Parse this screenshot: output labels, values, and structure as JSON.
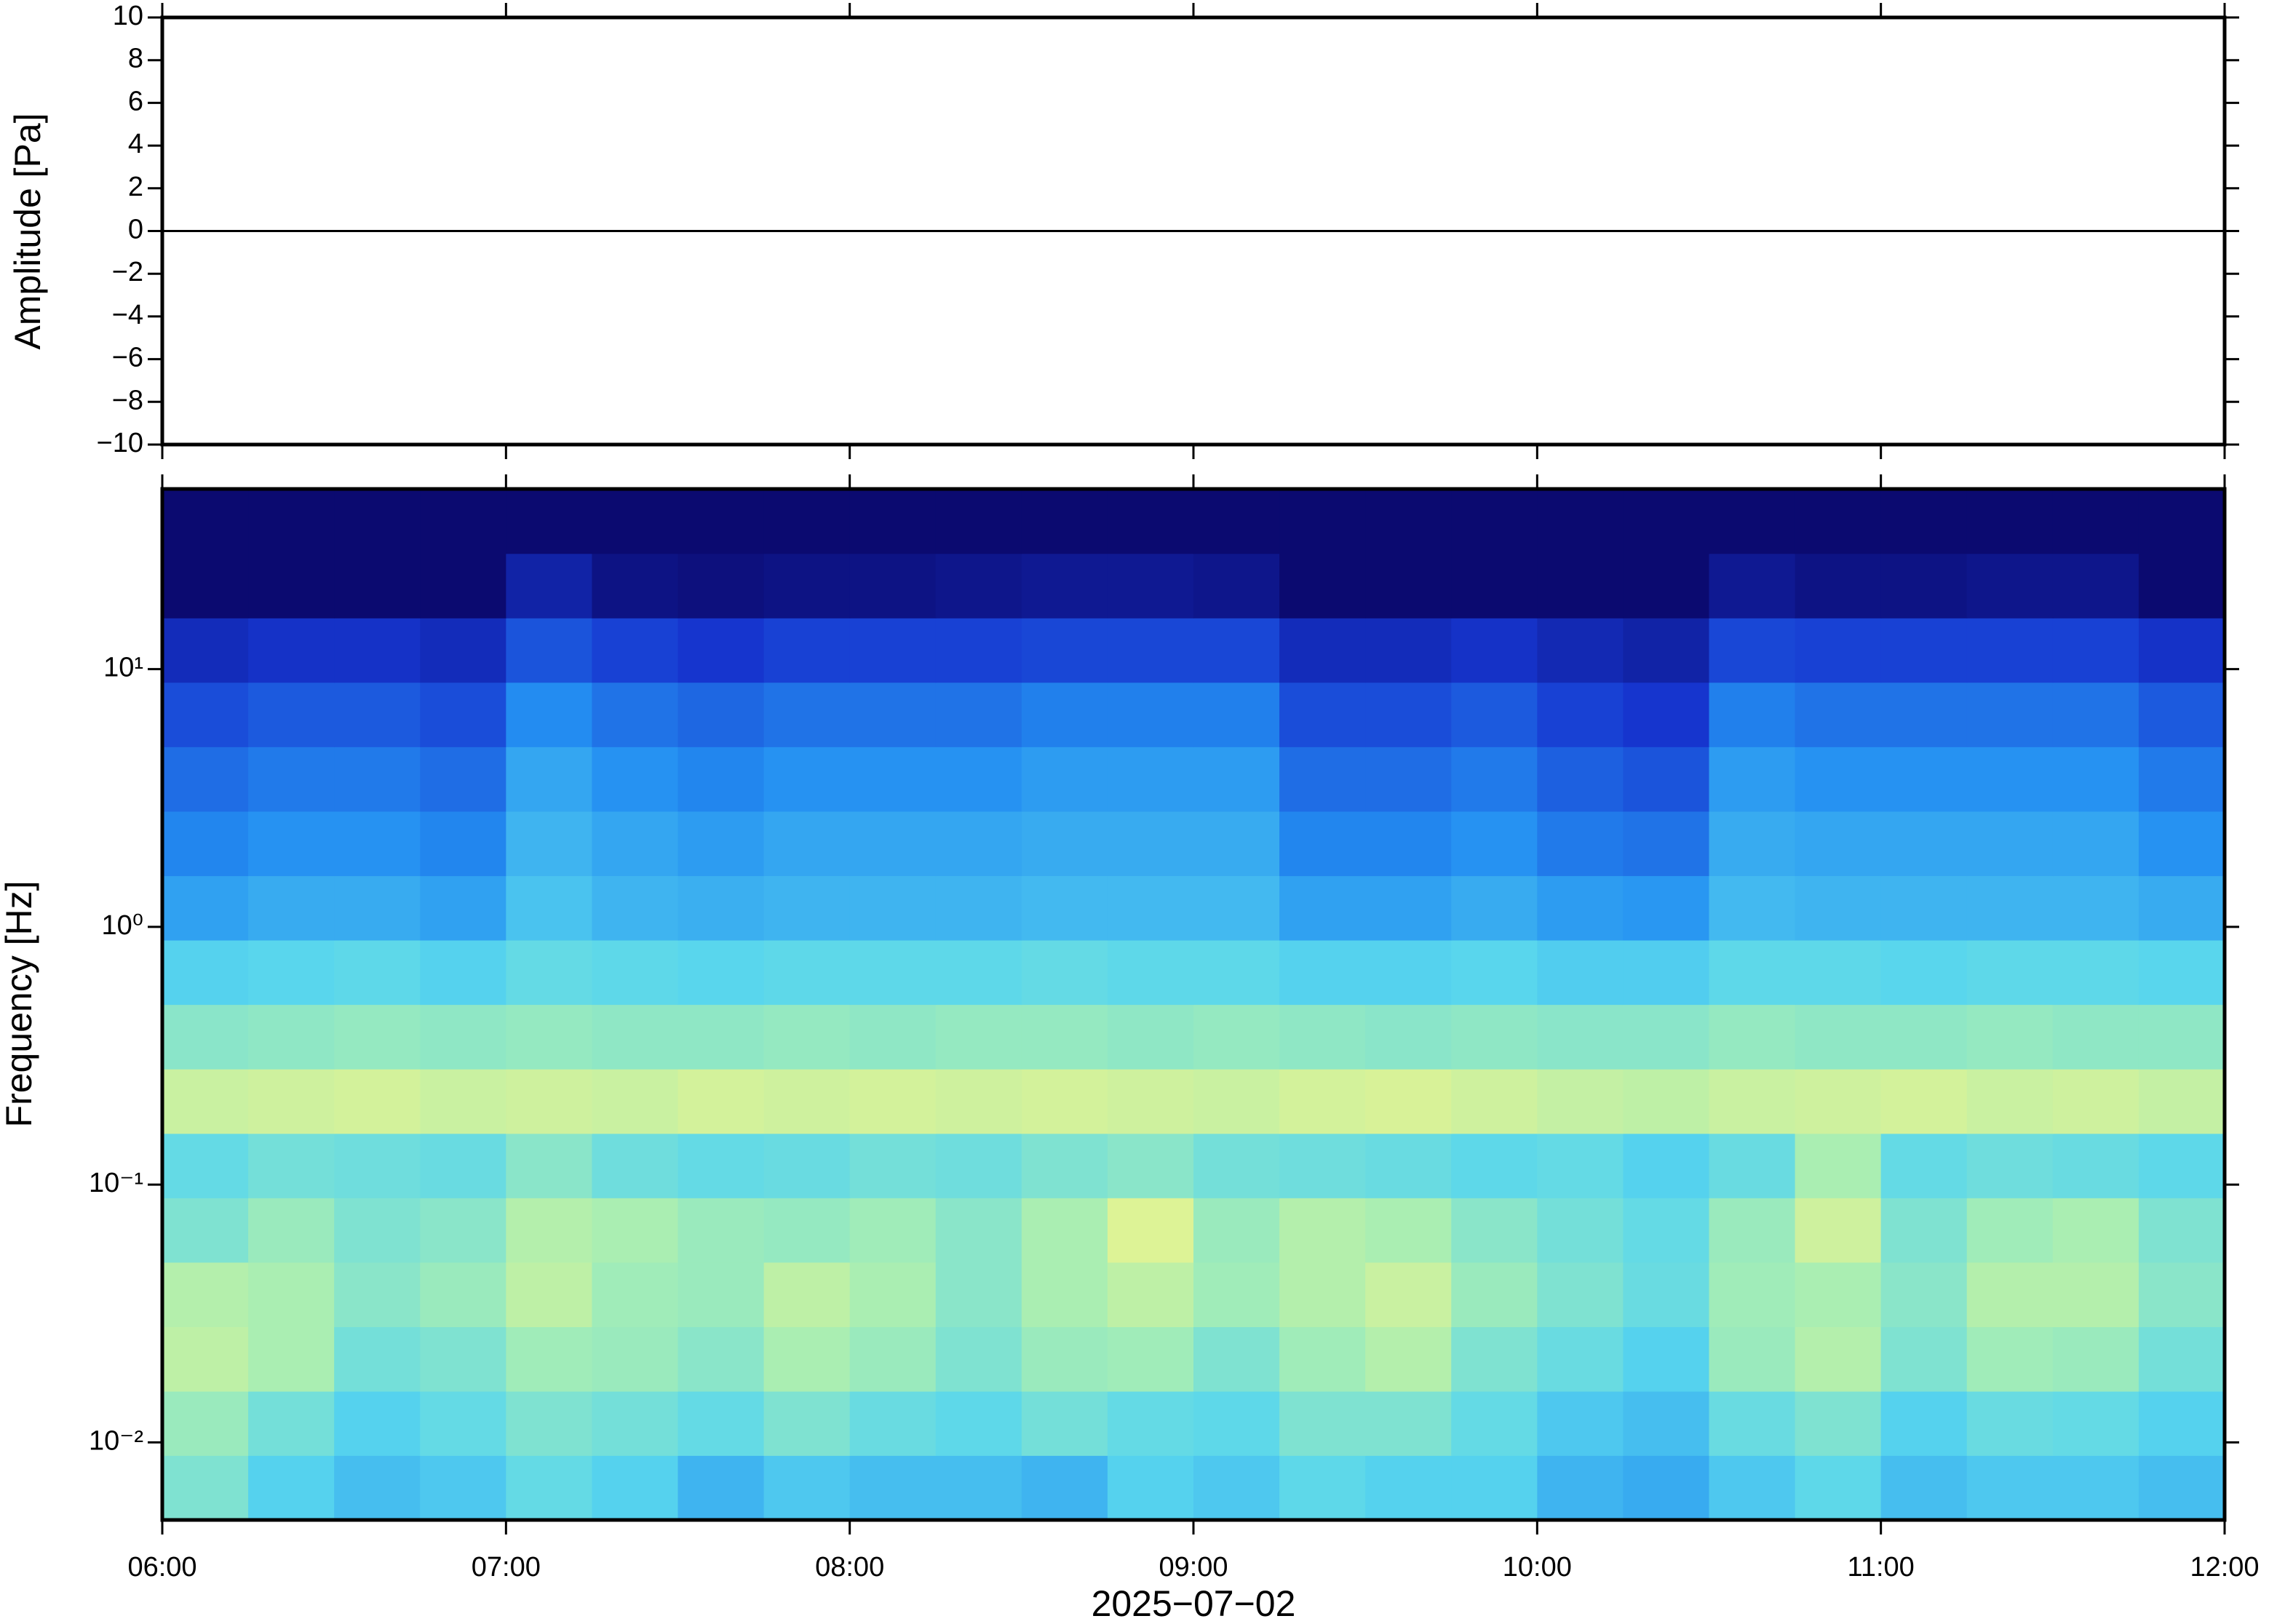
{
  "chart_data": [
    {
      "type": "line",
      "ylabel": "Amplitude [Pa]",
      "x": [
        6,
        12
      ],
      "series": [
        {
          "color": "#000000",
          "values": [
            0,
            0
          ]
        }
      ],
      "xlim": [
        6,
        12
      ],
      "xticks": [
        6,
        7,
        8,
        9,
        10,
        11,
        12
      ],
      "ylim": [
        -10,
        10
      ],
      "yticks": [
        {
          "value": -10,
          "label": "−10"
        },
        {
          "value": -8,
          "label": "−8"
        },
        {
          "value": -6,
          "label": "−6"
        },
        {
          "value": -4,
          "label": "−4"
        },
        {
          "value": -2,
          "label": "−2"
        },
        0,
        2,
        4,
        6,
        8,
        10
      ]
    },
    {
      "type": "heatmap",
      "ylabel": "Frequency [Hz]",
      "xlabel": "2025−07−02",
      "ylog": true,
      "colormap": [
        "#0b0a70",
        "#1636d0",
        "#2490f2",
        "#58d6ee",
        "#a6eeb4",
        "#eef48c",
        "#f6c268",
        "#e8603a"
      ],
      "x": [
        6,
        6.25,
        6.5,
        6.75,
        7,
        7.25,
        7.5,
        7.75,
        8,
        8.25,
        8.5,
        8.75,
        9,
        9.25,
        9.5,
        9.75,
        10,
        10.25,
        10.5,
        10.75,
        11,
        11.25,
        11.5,
        11.75,
        12
      ],
      "y": [
        0.005,
        0.0089,
        0.0158,
        0.0281,
        0.05,
        0.0889,
        0.158,
        0.281,
        0.5,
        0.889,
        1.58,
        2.81,
        5,
        8.89,
        15.8,
        28.1,
        50
      ],
      "values": [
        [
          0.5,
          0.42,
          0.38,
          0.4,
          0.45,
          0.42,
          0.36,
          0.4,
          0.38,
          0.38,
          0.36,
          0.42,
          0.4,
          0.44,
          0.42,
          0.42,
          0.36,
          0.34,
          0.4,
          0.44,
          0.38,
          0.4,
          0.4,
          0.38
        ],
        [
          0.55,
          0.48,
          0.42,
          0.45,
          0.5,
          0.48,
          0.45,
          0.5,
          0.46,
          0.44,
          0.48,
          0.45,
          0.44,
          0.5,
          0.5,
          0.45,
          0.4,
          0.38,
          0.46,
          0.5,
          0.42,
          0.46,
          0.45,
          0.42
        ],
        [
          0.62,
          0.58,
          0.48,
          0.5,
          0.56,
          0.55,
          0.52,
          0.58,
          0.55,
          0.5,
          0.55,
          0.56,
          0.5,
          0.56,
          0.6,
          0.5,
          0.46,
          0.42,
          0.55,
          0.6,
          0.5,
          0.56,
          0.55,
          0.48
        ],
        [
          0.6,
          0.58,
          0.52,
          0.55,
          0.62,
          0.56,
          0.55,
          0.62,
          0.58,
          0.52,
          0.58,
          0.62,
          0.56,
          0.6,
          0.64,
          0.55,
          0.5,
          0.46,
          0.56,
          0.58,
          0.52,
          0.6,
          0.6,
          0.52
        ],
        [
          0.5,
          0.55,
          0.5,
          0.52,
          0.6,
          0.58,
          0.55,
          0.54,
          0.56,
          0.52,
          0.58,
          0.68,
          0.55,
          0.6,
          0.58,
          0.52,
          0.48,
          0.45,
          0.55,
          0.65,
          0.5,
          0.56,
          0.58,
          0.5
        ],
        [
          0.45,
          0.48,
          0.47,
          0.46,
          0.52,
          0.47,
          0.45,
          0.46,
          0.48,
          0.47,
          0.5,
          0.52,
          0.48,
          0.47,
          0.46,
          0.44,
          0.45,
          0.42,
          0.46,
          0.58,
          0.45,
          0.47,
          0.46,
          0.44
        ],
        [
          0.64,
          0.65,
          0.66,
          0.64,
          0.65,
          0.64,
          0.66,
          0.65,
          0.66,
          0.65,
          0.66,
          0.65,
          0.64,
          0.66,
          0.67,
          0.65,
          0.63,
          0.62,
          0.64,
          0.65,
          0.66,
          0.64,
          0.65,
          0.63
        ],
        [
          0.52,
          0.53,
          0.54,
          0.53,
          0.54,
          0.53,
          0.53,
          0.54,
          0.53,
          0.54,
          0.54,
          0.53,
          0.54,
          0.53,
          0.52,
          0.53,
          0.52,
          0.52,
          0.54,
          0.53,
          0.53,
          0.54,
          0.53,
          0.53
        ],
        [
          0.42,
          0.43,
          0.44,
          0.42,
          0.45,
          0.44,
          0.43,
          0.44,
          0.44,
          0.44,
          0.45,
          0.44,
          0.44,
          0.42,
          0.42,
          0.43,
          0.41,
          0.41,
          0.44,
          0.44,
          0.43,
          0.44,
          0.44,
          0.43
        ],
        [
          0.32,
          0.34,
          0.34,
          0.32,
          0.39,
          0.36,
          0.35,
          0.36,
          0.36,
          0.36,
          0.37,
          0.37,
          0.37,
          0.32,
          0.32,
          0.34,
          0.31,
          0.3,
          0.37,
          0.36,
          0.36,
          0.36,
          0.36,
          0.34
        ],
        [
          0.27,
          0.29,
          0.29,
          0.27,
          0.36,
          0.33,
          0.31,
          0.33,
          0.33,
          0.33,
          0.34,
          0.34,
          0.34,
          0.27,
          0.27,
          0.29,
          0.25,
          0.24,
          0.34,
          0.33,
          0.33,
          0.33,
          0.33,
          0.29
        ],
        [
          0.23,
          0.25,
          0.25,
          0.23,
          0.33,
          0.29,
          0.27,
          0.29,
          0.29,
          0.29,
          0.31,
          0.31,
          0.31,
          0.23,
          0.23,
          0.25,
          0.21,
          0.19,
          0.31,
          0.29,
          0.29,
          0.29,
          0.29,
          0.25
        ],
        [
          0.18,
          0.2,
          0.2,
          0.18,
          0.28,
          0.24,
          0.22,
          0.24,
          0.24,
          0.24,
          0.26,
          0.26,
          0.26,
          0.18,
          0.18,
          0.2,
          0.16,
          0.14,
          0.26,
          0.24,
          0.24,
          0.24,
          0.24,
          0.2
        ],
        [
          0.11,
          0.13,
          0.13,
          0.11,
          0.19,
          0.16,
          0.14,
          0.16,
          0.16,
          0.16,
          0.17,
          0.17,
          0.17,
          0.11,
          0.11,
          0.13,
          0.1,
          0.08,
          0.17,
          0.16,
          0.16,
          0.16,
          0.16,
          0.13
        ],
        [
          0,
          0,
          0,
          0,
          0.08,
          0.03,
          0.02,
          0.03,
          0.03,
          0.04,
          0.05,
          0.05,
          0.04,
          0,
          0,
          0,
          0,
          0,
          0.05,
          0.03,
          0.03,
          0.04,
          0.04,
          0
        ],
        [
          0,
          0,
          0,
          0,
          0,
          0,
          0,
          0,
          0,
          0,
          0,
          0,
          0,
          0,
          0,
          0,
          0,
          0,
          0,
          0,
          0,
          0,
          0,
          0
        ]
      ],
      "xlim": [
        6,
        12
      ],
      "xticks": [
        {
          "value": 6,
          "label": "06:00"
        },
        {
          "value": 7,
          "label": "07:00"
        },
        {
          "value": 8,
          "label": "08:00"
        },
        {
          "value": 9,
          "label": "09:00"
        },
        {
          "value": 10,
          "label": "10:00"
        },
        {
          "value": 11,
          "label": "11:00"
        },
        {
          "value": 12,
          "label": "12:00"
        }
      ],
      "ylim": [
        0.005,
        50
      ],
      "yticks": [
        {
          "value": 0.01,
          "label": "10⁻²"
        },
        {
          "value": 0.1,
          "label": "10⁻¹"
        },
        {
          "value": 1,
          "label": "10⁰"
        },
        {
          "value": 10,
          "label": "10¹"
        }
      ]
    }
  ]
}
